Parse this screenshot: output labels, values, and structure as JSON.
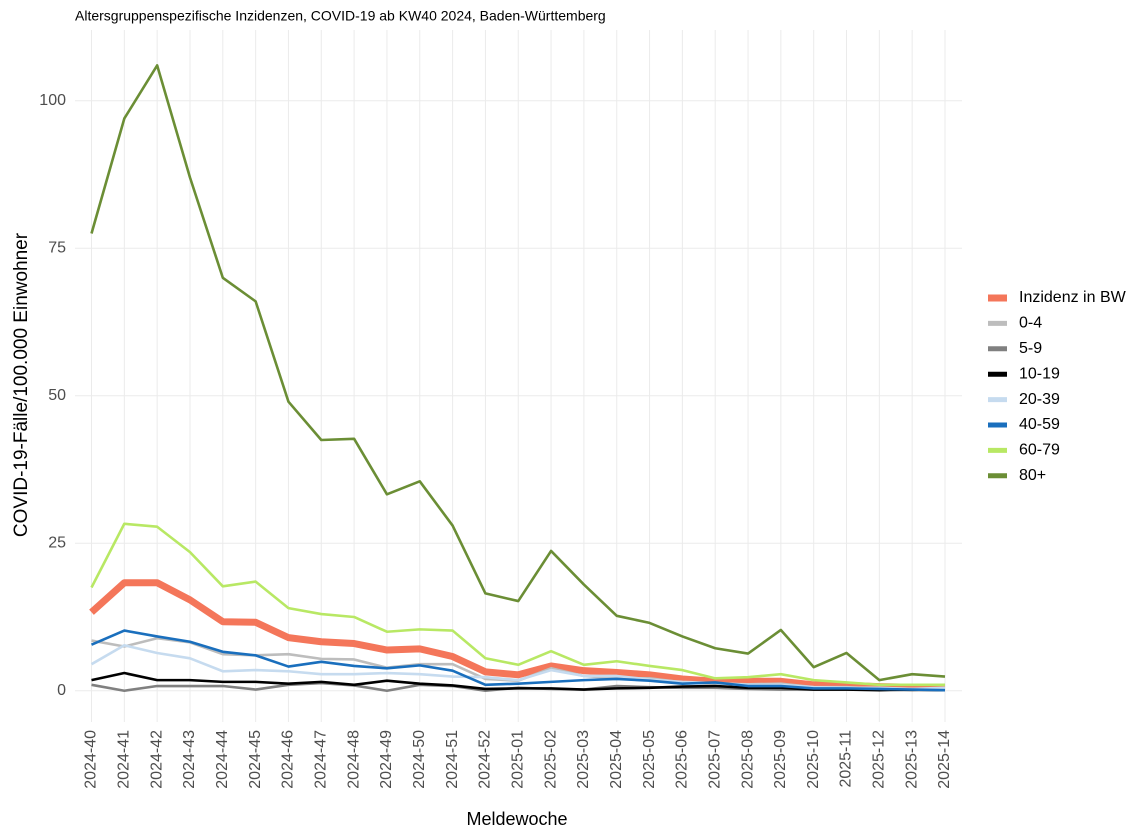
{
  "chart_data": {
    "type": "line",
    "title": "Altersgruppenspezifische Inzidenzen, COVID-19 ab KW40 2024, Baden-Württemberg",
    "x_label": "Meldewoche",
    "y_label": "COVID-19-Fälle/100.000 Einwohner",
    "categories": [
      "2024-40",
      "2024-41",
      "2024-42",
      "2024-43",
      "2024-44",
      "2024-45",
      "2024-46",
      "2024-47",
      "2024-48",
      "2024-49",
      "2024-50",
      "2024-51",
      "2024-52",
      "2025-01",
      "2025-02",
      "2025-03",
      "2025-04",
      "2025-05",
      "2025-06",
      "2025-07",
      "2025-08",
      "2025-09",
      "2025-10",
      "2025-11",
      "2025-12",
      "2025-13",
      "2025-14"
    ],
    "ylim": [
      -5.3,
      112
    ],
    "yticks": [
      0,
      25,
      50,
      75,
      100
    ],
    "grid": true,
    "legend": "right",
    "series": [
      {
        "name": "Inzidenz in BW",
        "color": "#f4765a",
        "values": [
          13.3,
          18.3,
          18.3,
          15.4,
          11.7,
          11.6,
          9,
          8.3,
          8,
          6.9,
          7.1,
          5.8,
          3.2,
          2.7,
          4.2,
          3.4,
          3.1,
          2.7,
          2,
          1.6,
          1.6,
          1.6,
          1,
          0.9,
          0.7,
          0.6,
          0.5
        ]
      },
      {
        "name": "0-4",
        "color": "#bdbdbd",
        "values": [
          8.5,
          7.5,
          8.9,
          8.2,
          6.2,
          6,
          6.2,
          5.4,
          5.3,
          3.9,
          4.5,
          4.5,
          2,
          1.7,
          3.8,
          2.5,
          2.1,
          2.1,
          1.4,
          1.2,
          1.1,
          1.2,
          0.6,
          0.6,
          0.3,
          0.3,
          0.3
        ]
      },
      {
        "name": "5-9",
        "color": "#808080",
        "values": [
          1,
          0,
          0.8,
          0.8,
          0.8,
          0.2,
          1,
          1.3,
          0.9,
          0,
          1,
          0.8,
          0,
          0.5,
          0.3,
          0.2,
          0.8,
          0.6,
          0.5,
          0.5,
          0.3,
          0.2,
          0.2,
          0.2,
          0.2,
          0.1,
          0.2
        ]
      },
      {
        "name": "10-19",
        "color": "#000000",
        "values": [
          1.8,
          3,
          1.8,
          1.8,
          1.5,
          1.5,
          1.2,
          1.5,
          1,
          1.7,
          1.2,
          0.9,
          0.3,
          0.4,
          0.4,
          0.2,
          0.4,
          0.5,
          0.7,
          0.8,
          0.5,
          0.5,
          0.2,
          0.2,
          0.1,
          0.2,
          0.1
        ]
      },
      {
        "name": "20-39",
        "color": "#c6dbef",
        "values": [
          4.5,
          7.7,
          6.4,
          5.5,
          3.3,
          3.5,
          3.3,
          2.8,
          2.8,
          3,
          2.8,
          2.4,
          2.3,
          1.8,
          3.5,
          2.5,
          2.5,
          1.9,
          1.5,
          1.3,
          1,
          1,
          0.6,
          0.5,
          0.5,
          0.3,
          0.5
        ]
      },
      {
        "name": "40-59",
        "color": "#1a6fbd",
        "values": [
          7.8,
          10.2,
          9.2,
          8.3,
          6.6,
          6,
          4.1,
          4.9,
          4.2,
          3.8,
          4.3,
          3.4,
          1,
          1.2,
          1.5,
          1.8,
          2,
          1.7,
          1.2,
          1.4,
          0.8,
          0.8,
          0.4,
          0.4,
          0.3,
          0.2,
          0.1
        ]
      },
      {
        "name": "60-79",
        "color": "#b8e864",
        "values": [
          17.5,
          28.3,
          27.8,
          23.5,
          17.7,
          18.5,
          14,
          13,
          12.5,
          10,
          10.4,
          10.2,
          5.5,
          4.4,
          6.7,
          4.4,
          5,
          4.2,
          3.5,
          2.1,
          2.3,
          2.8,
          1.8,
          1.4,
          1,
          1,
          1
        ]
      },
      {
        "name": "80+",
        "color": "#6b8e35",
        "values": [
          77.5,
          97,
          106,
          87,
          70,
          66,
          49,
          42.5,
          42.7,
          33.3,
          35.5,
          28,
          16.5,
          15.2,
          23.7,
          18,
          12.7,
          11.5,
          9.2,
          7.2,
          6.3,
          10.3,
          4,
          6.4,
          1.8,
          2.8,
          2.4
        ]
      }
    ]
  }
}
